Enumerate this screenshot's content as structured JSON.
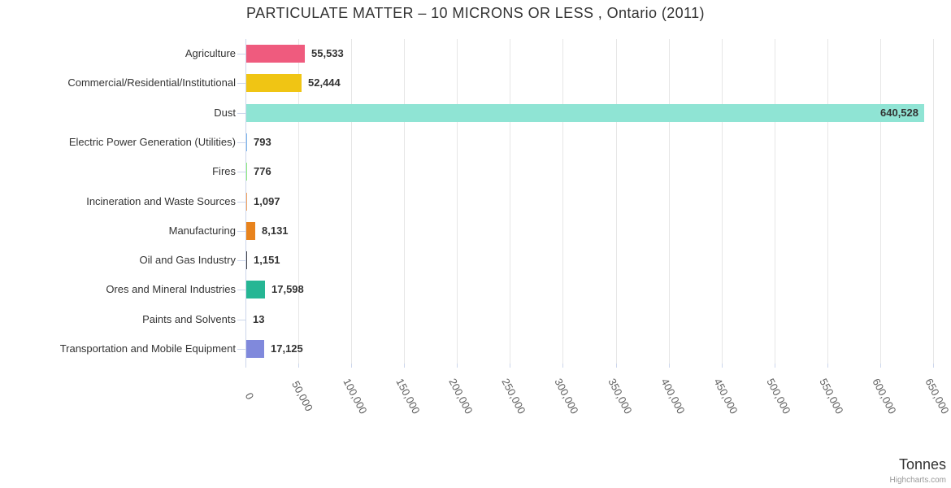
{
  "title": "PARTICULATE MATTER – 10 MICRONS OR LESS , Ontario (2011)",
  "chart_data": {
    "type": "bar",
    "orientation": "horizontal",
    "title": "PARTICULATE MATTER – 10 MICRONS OR LESS , Ontario (2011)",
    "xlabel": "Tonnes",
    "credits": "Highcharts.com",
    "categories": [
      "Agriculture",
      "Commercial/Residential/Institutional",
      "Dust",
      "Electric Power Generation (Utilities)",
      "Fires",
      "Incineration and Waste Sources",
      "Manufacturing",
      "Oil and Gas Industry",
      "Ores and Mineral Industries",
      "Paints and Solvents",
      "Transportation and Mobile Equipment"
    ],
    "values": [
      55533,
      52444,
      640528,
      793,
      776,
      1097,
      8131,
      1151,
      17598,
      13,
      17125
    ],
    "value_labels": [
      "55,533",
      "52,444",
      "640,528",
      "793",
      "776",
      "1,097",
      "8,131",
      "1,151",
      "17,598",
      "13",
      "17,125"
    ],
    "colors": [
      "#ef5b7e",
      "#f0c514",
      "#8fe4d4",
      "#7cb5ec",
      "#90ed7d",
      "#f7a35c",
      "#e8831d",
      "#434348",
      "#26b694",
      "#91e8e1",
      "#8089dc"
    ],
    "axis": {
      "min": 0,
      "max": 650000,
      "tick_interval": 50000,
      "tick_labels": [
        "0",
        "50,000",
        "100,000",
        "150,000",
        "200,000",
        "250,000",
        "300,000",
        "350,000",
        "400,000",
        "450,000",
        "500,000",
        "550,000",
        "600,000",
        "650,000"
      ]
    },
    "grid": true,
    "legend": "none",
    "ui_colors": {
      "title_text": "#333333",
      "label_text": "#333333",
      "tick_text": "#606060",
      "axis_line": "#ccd6eb",
      "grid_line": "#e6e6e6",
      "credits_text": "#999999"
    }
  }
}
